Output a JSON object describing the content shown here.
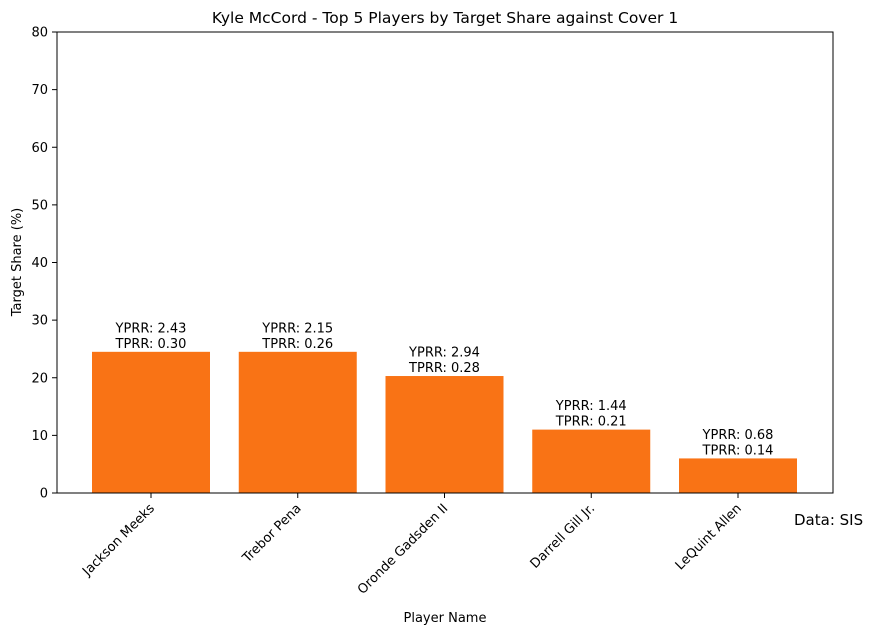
{
  "chart_data": {
    "type": "bar",
    "title": "Kyle McCord - Top 5 Players by Target Share against Cover 1",
    "xlabel": "Player Name",
    "ylabel": "Target Share (%)",
    "categories": [
      "Jackson Meeks",
      "Trebor Pena",
      "Oronde Gadsden II",
      "Darrell Gill Jr.",
      "LeQuint Allen"
    ],
    "values": [
      24.5,
      24.5,
      20.3,
      11.0,
      6.0
    ],
    "bar_labels": [
      [
        "YPRR: 2.43",
        "TPRR: 0.30"
      ],
      [
        "YPRR: 2.15",
        "TPRR: 0.26"
      ],
      [
        "YPRR: 2.94",
        "TPRR: 0.28"
      ],
      [
        "YPRR: 1.44",
        "TPRR: 0.21"
      ],
      [
        "YPRR: 0.68",
        "TPRR: 0.14"
      ]
    ],
    "ylim": [
      0,
      80
    ],
    "yticks": [
      0,
      10,
      20,
      30,
      40,
      50,
      60,
      70,
      80
    ],
    "bar_color": "#f97315",
    "grid": false,
    "source_note": "Data: SIS"
  }
}
